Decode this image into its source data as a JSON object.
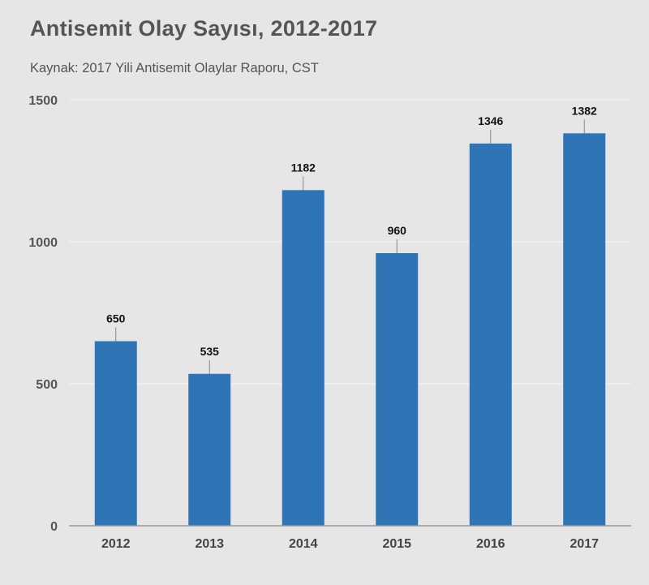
{
  "title": "Antisemit Olay Sayısı, 2012-2017",
  "subtitle": "Kaynak: 2017 Yili Antisemit Olaylar Raporu, CST",
  "colors": {
    "bar": "#2f75b5",
    "background": "#e6e6e6",
    "grid": "#f4f4f4",
    "axis": "#999999"
  },
  "chart_data": {
    "type": "bar",
    "title": "Antisemit Olay Sayısı, 2012-2017",
    "subtitle": "Kaynak: 2017 Yili Antisemit Olaylar Raporu, CST",
    "categories": [
      "2012",
      "2013",
      "2014",
      "2015",
      "2016",
      "2017"
    ],
    "values": [
      650,
      535,
      1182,
      960,
      1346,
      1382
    ],
    "data_labels": [
      "650",
      "535",
      "1182",
      "960",
      "1346",
      "1382"
    ],
    "yticks": [
      0,
      500,
      1000,
      1500
    ],
    "ylim": [
      0,
      1500
    ],
    "xlabel": "",
    "ylabel": "",
    "grid": true,
    "legend": "none"
  }
}
